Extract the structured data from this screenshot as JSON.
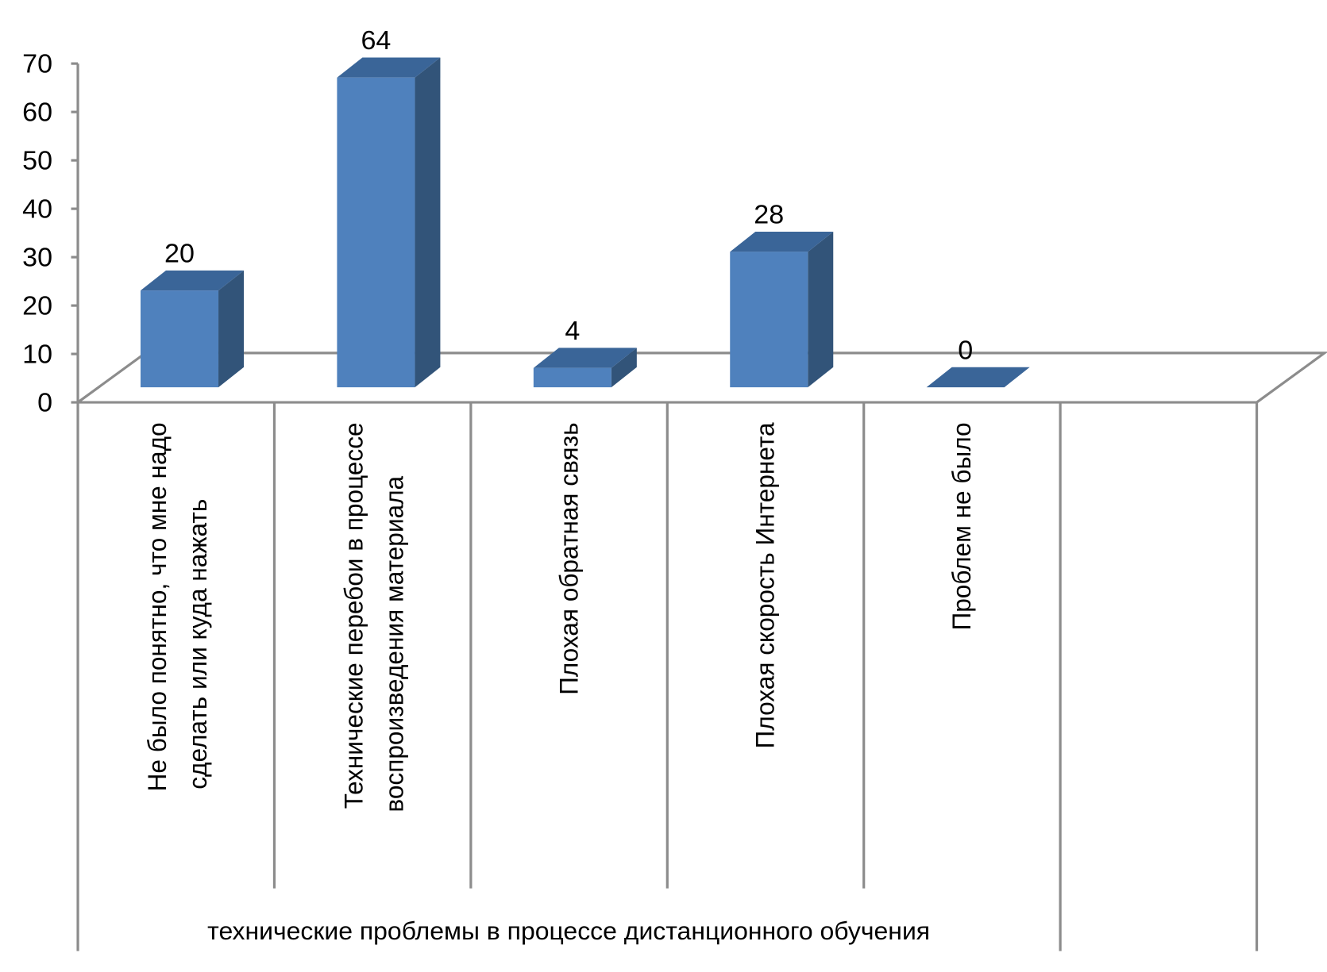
{
  "chart_data": {
    "type": "bar",
    "style": "3d-column",
    "title": "",
    "xlabel": "технические проблемы в процессе дистанционного обучения",
    "ylabel": "",
    "ylim": [
      0,
      70
    ],
    "yticks": [
      0,
      10,
      20,
      30,
      40,
      50,
      60,
      70
    ],
    "grid": false,
    "legend": "none",
    "categories": [
      [
        "Не было понятно, что мне надо",
        "сделать или куда нажать"
      ],
      [
        "Технические перебои в процессе",
        "воспроизведения материала"
      ],
      [
        "Плохая обратная связь"
      ],
      [
        "Плохая скорость Интернета"
      ],
      [
        "Проблем не было"
      ]
    ],
    "values": [
      20,
      64,
      4,
      28,
      0
    ],
    "colors": {
      "front": "#4f81bd",
      "side": "#325479",
      "top": "#3a6598",
      "axis": "#8c8c8c"
    }
  }
}
